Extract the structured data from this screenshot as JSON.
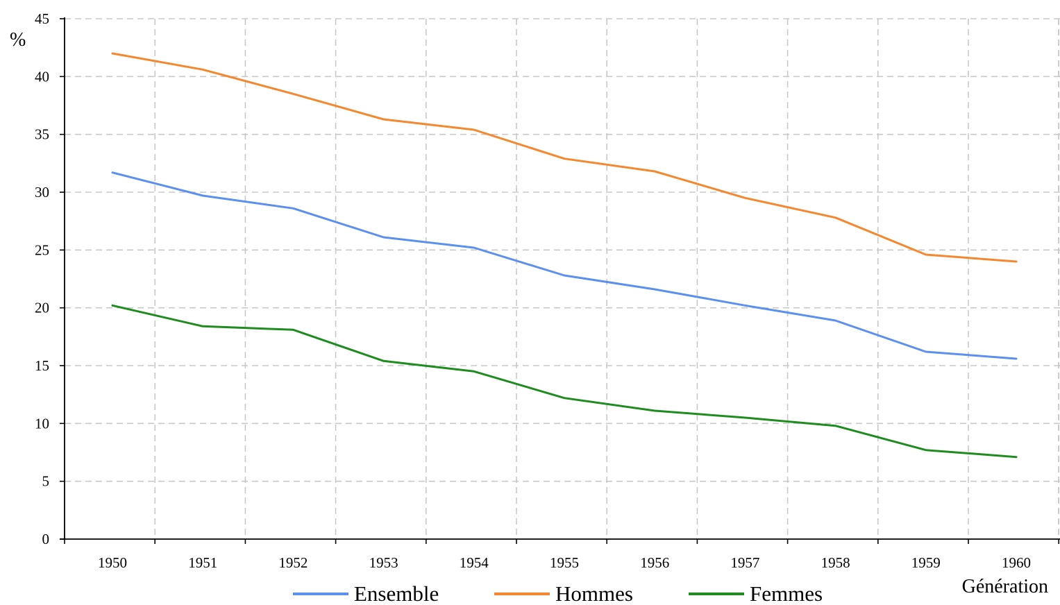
{
  "chart_data": {
    "type": "line",
    "x": [
      1950,
      1951,
      1952,
      1953,
      1954,
      1955,
      1956,
      1957,
      1958,
      1959,
      1960
    ],
    "x_tick_labels": [
      "1950",
      "1951",
      "1952",
      "1953",
      "1954",
      "1955",
      "1956",
      "1957",
      "1958",
      "1959",
      "1960"
    ],
    "xlabel": "Génération",
    "ylabel": "%",
    "ylim": [
      0,
      45
    ],
    "y_ticks": [
      0,
      5,
      10,
      15,
      20,
      25,
      30,
      35,
      40,
      45
    ],
    "grid": true,
    "legend_position": "bottom",
    "series": [
      {
        "name": "Ensemble",
        "color": "#5b8ff0",
        "values": [
          31.7,
          29.7,
          28.6,
          26.1,
          25.2,
          22.8,
          21.6,
          20.2,
          18.9,
          16.2,
          15.6
        ]
      },
      {
        "name": "Hommes",
        "color": "#f5872e",
        "values": [
          42.0,
          40.6,
          38.5,
          36.3,
          35.4,
          32.9,
          31.8,
          29.5,
          27.8,
          24.6,
          24.0
        ]
      },
      {
        "name": "Femmes",
        "color": "#1e8c1e",
        "values": [
          20.2,
          18.4,
          18.1,
          15.4,
          14.5,
          12.2,
          11.1,
          10.5,
          9.8,
          7.7,
          7.1
        ]
      }
    ]
  }
}
